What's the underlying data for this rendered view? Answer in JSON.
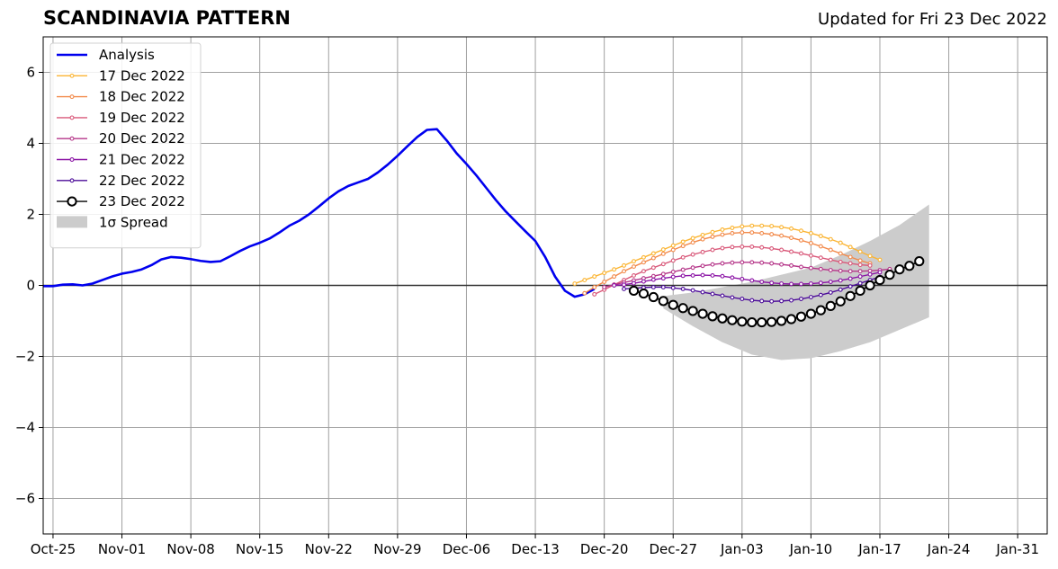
{
  "chart_data": {
    "type": "line",
    "title": "SCANDINAVIA PATTERN",
    "subtitle": "Updated for Fri 23 Dec 2022",
    "x_tick_labels": [
      "Oct-25",
      "Nov-01",
      "Nov-08",
      "Nov-15",
      "Nov-22",
      "Nov-29",
      "Dec-06",
      "Dec-13",
      "Dec-20",
      "Dec-27",
      "Jan-03",
      "Jan-10",
      "Jan-17",
      "Jan-24",
      "Jan-31"
    ],
    "x_tick_dates": [
      "2022-10-25",
      "2022-11-01",
      "2022-11-08",
      "2022-11-15",
      "2022-11-22",
      "2022-11-29",
      "2022-12-06",
      "2022-12-13",
      "2022-12-20",
      "2022-12-27",
      "2023-01-03",
      "2023-01-10",
      "2023-01-17",
      "2023-01-24",
      "2023-01-31"
    ],
    "xlim": [
      "2022-10-24",
      "2023-02-03"
    ],
    "ylim": [
      -7,
      7
    ],
    "y_ticks": [
      -6,
      -4,
      -2,
      0,
      2,
      4,
      6
    ],
    "y_tick_labels": [
      "−6",
      "−4",
      "−2",
      "0",
      "2",
      "4",
      "6"
    ],
    "grid": true,
    "legend_position": "top-left",
    "analysis": {
      "name": "Analysis",
      "color": "#0000ee",
      "x": [
        "2022-10-24",
        "2022-10-25",
        "2022-10-26",
        "2022-10-27",
        "2022-10-28",
        "2022-10-29",
        "2022-10-30",
        "2022-10-31",
        "2022-11-01",
        "2022-11-02",
        "2022-11-03",
        "2022-11-04",
        "2022-11-05",
        "2022-11-06",
        "2022-11-07",
        "2022-11-08",
        "2022-11-09",
        "2022-11-10",
        "2022-11-11",
        "2022-11-12",
        "2022-11-13",
        "2022-11-14",
        "2022-11-15",
        "2022-11-16",
        "2022-11-17",
        "2022-11-18",
        "2022-11-19",
        "2022-11-20",
        "2022-11-21",
        "2022-11-22",
        "2022-11-23",
        "2022-11-24",
        "2022-11-25",
        "2022-11-26",
        "2022-11-27",
        "2022-11-28",
        "2022-11-29",
        "2022-11-30",
        "2022-12-01",
        "2022-12-02",
        "2022-12-03",
        "2022-12-04",
        "2022-12-05",
        "2022-12-06",
        "2022-12-07",
        "2022-12-08",
        "2022-12-09",
        "2022-12-10",
        "2022-12-11",
        "2022-12-12",
        "2022-12-13",
        "2022-12-14",
        "2022-12-15",
        "2022-12-16",
        "2022-12-17",
        "2022-12-18",
        "2022-12-19"
      ],
      "y": [
        -0.02,
        -0.02,
        0.02,
        0.03,
        0.0,
        0.05,
        0.15,
        0.25,
        0.33,
        0.38,
        0.45,
        0.57,
        0.73,
        0.8,
        0.78,
        0.74,
        0.69,
        0.66,
        0.68,
        0.82,
        0.97,
        1.1,
        1.2,
        1.32,
        1.49,
        1.68,
        1.82,
        2.0,
        2.22,
        2.45,
        2.65,
        2.8,
        2.9,
        3.0,
        3.18,
        3.4,
        3.65,
        3.92,
        4.18,
        4.38,
        4.4,
        4.08,
        3.72,
        3.42,
        3.1,
        2.75,
        2.4,
        2.08,
        1.8,
        1.52,
        1.25,
        0.8,
        0.25,
        -0.15,
        -0.32,
        -0.25,
        -0.1
      ]
    },
    "series": [
      {
        "name": "17 Dec 2022",
        "color": "#fbb534",
        "marker": "small",
        "start": "2022-12-17",
        "y": [
          0.05,
          0.15,
          0.25,
          0.35,
          0.45,
          0.56,
          0.68,
          0.79,
          0.9,
          1.01,
          1.12,
          1.23,
          1.33,
          1.42,
          1.5,
          1.57,
          1.62,
          1.66,
          1.68,
          1.68,
          1.67,
          1.64,
          1.6,
          1.54,
          1.47,
          1.39,
          1.3,
          1.2,
          1.08,
          0.95,
          0.83,
          0.72
        ]
      },
      {
        "name": "18 Dec 2022",
        "color": "#f28a4a",
        "marker": "small",
        "start": "2022-12-18",
        "y": [
          -0.22,
          -0.05,
          0.1,
          0.25,
          0.4,
          0.53,
          0.65,
          0.77,
          0.89,
          1.0,
          1.11,
          1.21,
          1.3,
          1.37,
          1.43,
          1.47,
          1.49,
          1.49,
          1.47,
          1.44,
          1.4,
          1.34,
          1.27,
          1.19,
          1.1,
          1.0,
          0.9,
          0.8,
          0.7,
          0.62
        ]
      },
      {
        "name": "19 Dec 2022",
        "color": "#d9597a",
        "marker": "small",
        "start": "2022-12-19",
        "y": [
          -0.25,
          -0.12,
          0.02,
          0.15,
          0.28,
          0.4,
          0.5,
          0.6,
          0.7,
          0.79,
          0.87,
          0.94,
          1.0,
          1.05,
          1.08,
          1.09,
          1.09,
          1.07,
          1.04,
          1.0,
          0.95,
          0.9,
          0.84,
          0.78,
          0.72,
          0.66,
          0.62,
          0.58,
          0.56
        ]
      },
      {
        "name": "20 Dec 2022",
        "color": "#b53689",
        "marker": "small",
        "start": "2022-12-20",
        "y": [
          -0.05,
          0.02,
          0.08,
          0.14,
          0.2,
          0.26,
          0.32,
          0.38,
          0.44,
          0.5,
          0.55,
          0.59,
          0.62,
          0.64,
          0.65,
          0.65,
          0.64,
          0.62,
          0.59,
          0.56,
          0.52,
          0.49,
          0.46,
          0.43,
          0.41,
          0.4,
          0.4,
          0.41,
          0.43,
          0.46
        ]
      },
      {
        "name": "21 Dec 2022",
        "color": "#8b14a5",
        "marker": "small",
        "start": "2022-12-21",
        "y": [
          0.0,
          0.02,
          0.06,
          0.11,
          0.16,
          0.2,
          0.24,
          0.27,
          0.28,
          0.29,
          0.28,
          0.26,
          0.22,
          0.18,
          0.14,
          0.1,
          0.07,
          0.05,
          0.04,
          0.04,
          0.05,
          0.07,
          0.1,
          0.14,
          0.19,
          0.25,
          0.31,
          0.37
        ]
      },
      {
        "name": "22 Dec 2022",
        "color": "#4d0d9a",
        "marker": "small",
        "start": "2022-12-22",
        "y": [
          -0.1,
          -0.08,
          -0.06,
          -0.05,
          -0.05,
          -0.07,
          -0.1,
          -0.14,
          -0.19,
          -0.24,
          -0.29,
          -0.34,
          -0.38,
          -0.42,
          -0.44,
          -0.45,
          -0.44,
          -0.42,
          -0.38,
          -0.33,
          -0.27,
          -0.2,
          -0.12,
          -0.03,
          0.06,
          0.15,
          0.24
        ]
      },
      {
        "name": "23 Dec 2022",
        "color": "#000000",
        "marker": "large",
        "start": "2022-12-23",
        "y": [
          -0.15,
          -0.23,
          -0.33,
          -0.44,
          -0.55,
          -0.64,
          -0.72,
          -0.8,
          -0.87,
          -0.93,
          -0.98,
          -1.02,
          -1.04,
          -1.04,
          -1.03,
          -1.0,
          -0.95,
          -0.88,
          -0.8,
          -0.7,
          -0.58,
          -0.45,
          -0.3,
          -0.15,
          0.0,
          0.15,
          0.3,
          0.45,
          0.55,
          0.68
        ]
      }
    ],
    "spread": {
      "name": "1σ Spread",
      "color": "#cccccc",
      "x": [
        "2022-12-26",
        "2022-12-29",
        "2023-01-01",
        "2023-01-04",
        "2023-01-07",
        "2023-01-10",
        "2023-01-13",
        "2023-01-16",
        "2023-01-19",
        "2023-01-22"
      ],
      "upper": [
        -0.3,
        -0.2,
        -0.05,
        0.1,
        0.3,
        0.5,
        0.85,
        1.25,
        1.7,
        2.28
      ],
      "lower": [
        -0.65,
        -1.15,
        -1.6,
        -1.95,
        -2.1,
        -2.05,
        -1.85,
        -1.6,
        -1.25,
        -0.9
      ]
    }
  }
}
